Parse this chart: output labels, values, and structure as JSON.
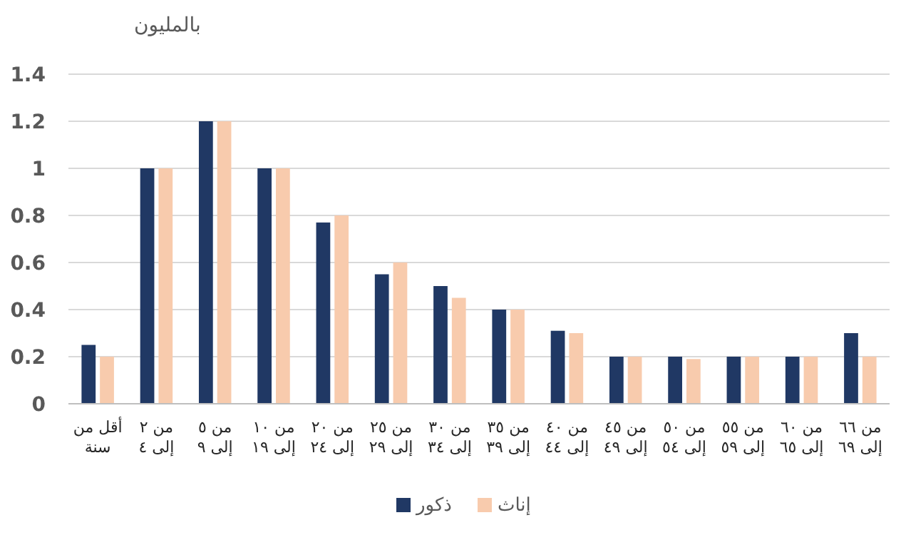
{
  "chart_data": {
    "type": "bar",
    "ylabel": "بالمليون",
    "categories": [
      "أقل من سنة",
      "من ٢ إلى ٤",
      "من ٥ إلى ٩",
      "من ١٠ إلى ١٩",
      "من ٢٠ إلى ٢٤",
      "من ٢٥ إلى ٢٩",
      "من ٣٠ إلى ٣٤",
      "من ٣٥ إلى ٣٩",
      "من ٤٠ إلى ٤٤",
      "من ٤٥ إلى ٤٩",
      "من ٥٠ إلى ٥٤",
      "من ٥٥ إلى ٥٩",
      "من ٦٠ إلى ٦٥",
      "من ٦٦ إلى ٦٩"
    ],
    "series": [
      {
        "name": "ذكور",
        "color": "#203864",
        "values": [
          0.25,
          1,
          1.2,
          1,
          0.77,
          0.55,
          0.5,
          0.4,
          0.31,
          0.2,
          0.2,
          0.2,
          0.2,
          0.3
        ]
      },
      {
        "name": "إناث",
        "color": "#f8cbad",
        "values": [
          0.2,
          1,
          1.2,
          1,
          0.8,
          0.6,
          0.45,
          0.4,
          0.3,
          0.2,
          0.19,
          0.2,
          0.2,
          0.2
        ]
      }
    ],
    "ylim": [
      0,
      1.4
    ],
    "yticks": [
      0,
      0.2,
      0.4,
      0.6,
      0.8,
      1,
      1.2,
      1.4
    ],
    "grid": "y",
    "legend": "bottom"
  }
}
